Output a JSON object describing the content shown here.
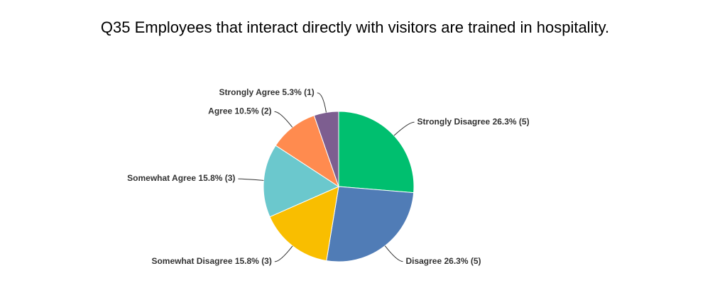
{
  "chart_data": {
    "type": "pie",
    "title": "Q35 Employees that interact directly with visitors are trained in hospitality.",
    "values": [
      26.3,
      26.3,
      15.8,
      15.8,
      10.5,
      5.3
    ],
    "value_labels": [
      "Strongly Disagree 26.3% (5)",
      "Disagree 26.3% (5)",
      "Somewhat Disagree 15.8% (3)",
      "Somewhat Agree 15.8% (3)",
      "Agree 10.5% (2)",
      "Strongly Agree 5.3% (1)"
    ],
    "colors": [
      "#00bf6f",
      "#507cb6",
      "#f9be00",
      "#6bc8cd",
      "#ff8b4f",
      "#7d5e90"
    ]
  }
}
